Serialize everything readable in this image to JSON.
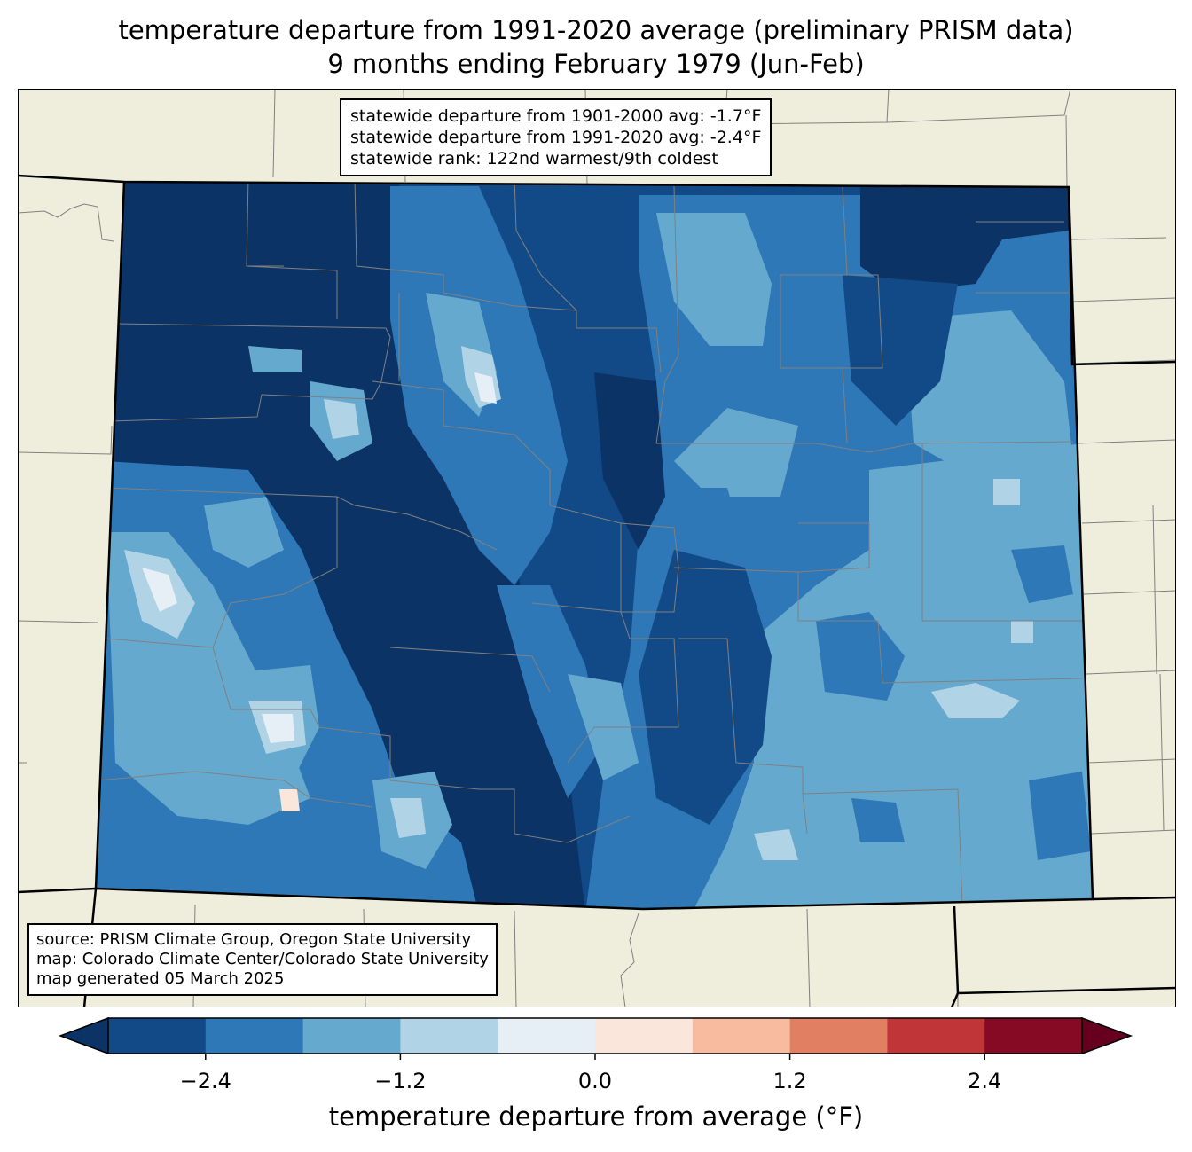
{
  "title_line1": "temperature departure from 1991-2020 average (preliminary PRISM data)",
  "title_line2": "9 months ending February 1979 (Jun-Feb)",
  "stats": {
    "line1": "statewide departure from 1901-2000 avg: -1.7°F",
    "line2": "statewide departure from 1991-2020 avg: -2.4°F",
    "line3": "statewide rank: 122nd warmest/9th coldest"
  },
  "source": {
    "line1": "source: PRISM Climate Group, Oregon State University",
    "line2": "map: Colorado Climate Center/Colorado State University",
    "line3": "map generated 05 March 2025"
  },
  "colorbar": {
    "label": "temperature departure from average (°F)",
    "ticks": [
      "−2.4",
      "−1.2",
      "0.0",
      "1.2",
      "2.4"
    ],
    "tick_values": [
      -2.4,
      -1.2,
      0.0,
      1.2,
      2.4
    ],
    "range": [
      -3.0,
      3.0
    ],
    "step": 0.6,
    "colors": [
      "#124a87",
      "#2e78b7",
      "#66a9cf",
      "#b0d3e6",
      "#e6eff5",
      "#fbe6dc",
      "#f8bba0",
      "#e17f63",
      "#c03638",
      "#870a24"
    ],
    "extend_low_color": "#0b3365",
    "extend_high_color": "#67001f"
  },
  "map_colors": {
    "land": "#efeedc",
    "county_lines": "#808080",
    "state_lines": "#000000"
  }
}
